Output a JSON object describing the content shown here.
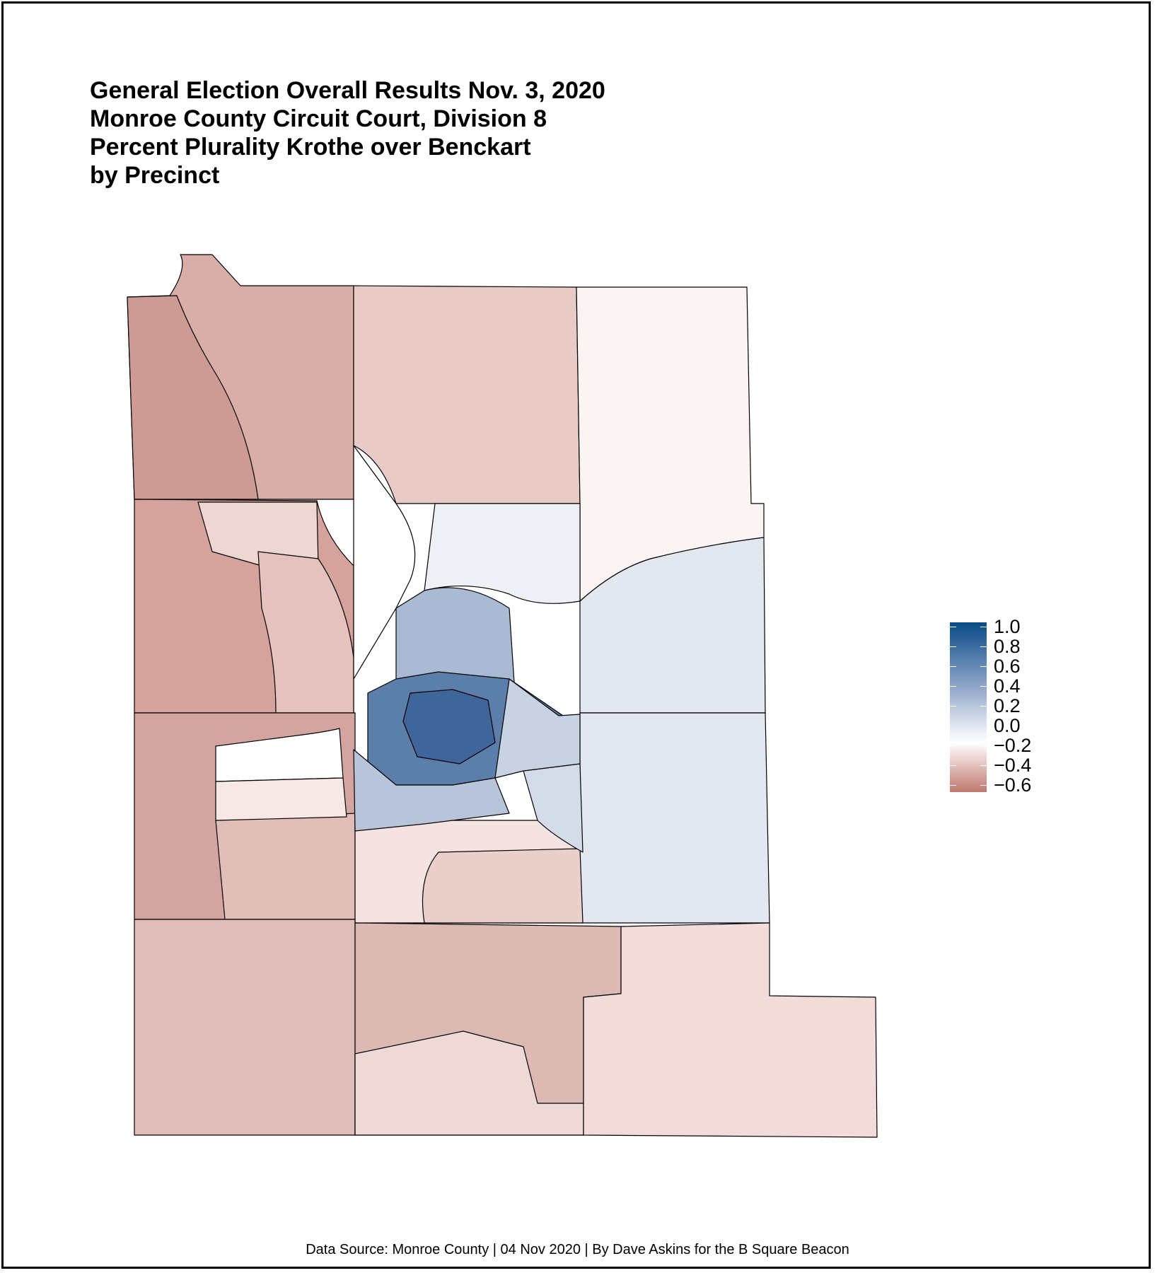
{
  "title": {
    "line1": "General Election Overall Results Nov. 3, 2020",
    "line2": "Monroe County Circuit Court, Division 8",
    "line3": "Percent Plurality Krothe over Benckart",
    "line4": "by Precinct"
  },
  "legend": {
    "labels": [
      "1.0",
      "0.8",
      "0.6",
      "0.4",
      "0.2",
      "0.0",
      "−0.2",
      "−0.4",
      "−0.6"
    ],
    "colors": {
      "max": "#084a86",
      "zero": "#ffffff",
      "min": "#c07870"
    }
  },
  "caption": "Data Source: Monroe County | 04 Nov 2020 | By Dave Askins for the B Square Beacon"
}
